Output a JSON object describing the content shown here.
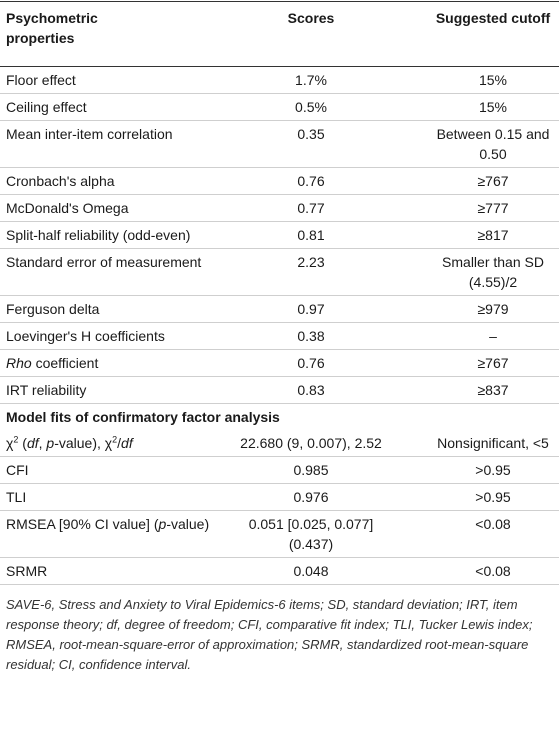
{
  "table": {
    "header": [
      "Psychometric properties",
      "Scores",
      "Suggested cutoff"
    ],
    "sections": [
      {
        "rows": [
          [
            "Floor effect",
            "1.7%",
            "15%"
          ],
          [
            "Ceiling effect",
            "0.5%",
            "15%"
          ],
          [
            "Mean inter-item correlation",
            "0.35",
            "Between 0.15 and 0.50"
          ],
          [
            "Cronbach's alpha",
            "0.76",
            "≥767"
          ],
          [
            "McDonald's Omega",
            "0.77",
            "≥777"
          ],
          [
            "Split-half reliability (odd-even)",
            "0.81",
            "≥817"
          ],
          [
            "Standard error of measurement",
            "2.23",
            "Smaller than SD (4.55)/2"
          ],
          [
            "Ferguson delta",
            "0.97",
            "≥979"
          ],
          [
            "Loevinger's H coefficients",
            "0.38",
            "–"
          ],
          [
            [
              {
                "text": "Rho",
                "format": "italic"
              },
              " coefficient"
            ],
            "0.76",
            "≥767"
          ],
          [
            "IRT reliability",
            "0.83",
            "≥837"
          ]
        ]
      },
      {
        "title": "Model fits of confirmatory factor analysis",
        "rows": [
          [
            [
              "χ",
              {
                "text": "2",
                "format": "superscript"
              },
              " (",
              {
                "text": "df",
                "format": "italic"
              },
              ", ",
              {
                "text": "p",
                "format": "italic"
              },
              "-value), χ",
              {
                "text": "2",
                "format": "superscript"
              },
              "/",
              {
                "text": "df",
                "format": "italic"
              }
            ],
            "22.680 (9, 0.007), 2.52",
            "Nonsignificant, <5"
          ],
          [
            "CFI",
            "0.985",
            ">0.95"
          ],
          [
            "TLI",
            "0.976",
            ">0.95"
          ],
          [
            [
              "RMSEA [90% CI value] (",
              {
                "text": "p",
                "format": "italic"
              },
              "-value)"
            ],
            "0.051 [0.025, 0.077] (0.437)",
            "<0.08"
          ],
          [
            "SRMR",
            "0.048",
            "<0.08"
          ]
        ]
      }
    ]
  },
  "footnote": "SAVE-6, Stress and Anxiety to Viral Epidemics-6 items; SD, standard deviation; IRT, item response theory; df, degree of freedom; CFI, comparative fit index; TLI, Tucker Lewis index; RMSEA, root-mean-square-error of approximation; SRMR, standardized root-mean-square residual; CI, confidence interval."
}
